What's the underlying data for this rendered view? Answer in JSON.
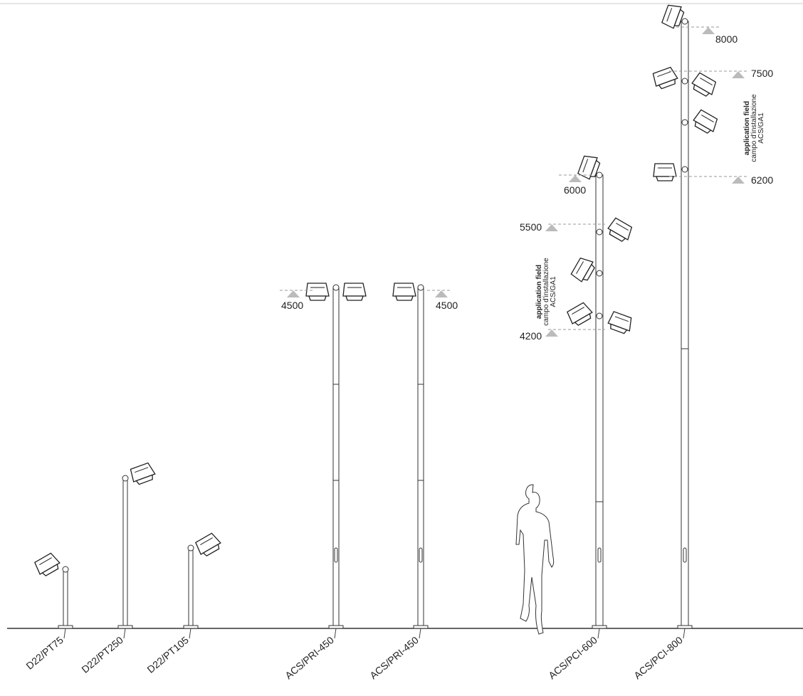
{
  "poles": [
    {
      "label": "D22/PT75"
    },
    {
      "label": "D22/PT250"
    },
    {
      "label": "D22/PT105"
    },
    {
      "label": "ACS/PRI-450"
    },
    {
      "label": "ACS/PRI-450"
    },
    {
      "label": "ACS/PCI-600"
    },
    {
      "label": "ACS/PCI-800"
    }
  ],
  "heights": [
    "8000",
    "7500",
    "6200",
    "6000",
    "5500",
    "4200",
    "4500",
    "4500"
  ],
  "notes": [
    {
      "lines": [
        "application field",
        "campo d'installazione",
        "ACS/GA1"
      ]
    },
    {
      "lines": [
        "application field",
        "campo d'installazione",
        "ACS/GA1"
      ]
    }
  ]
}
